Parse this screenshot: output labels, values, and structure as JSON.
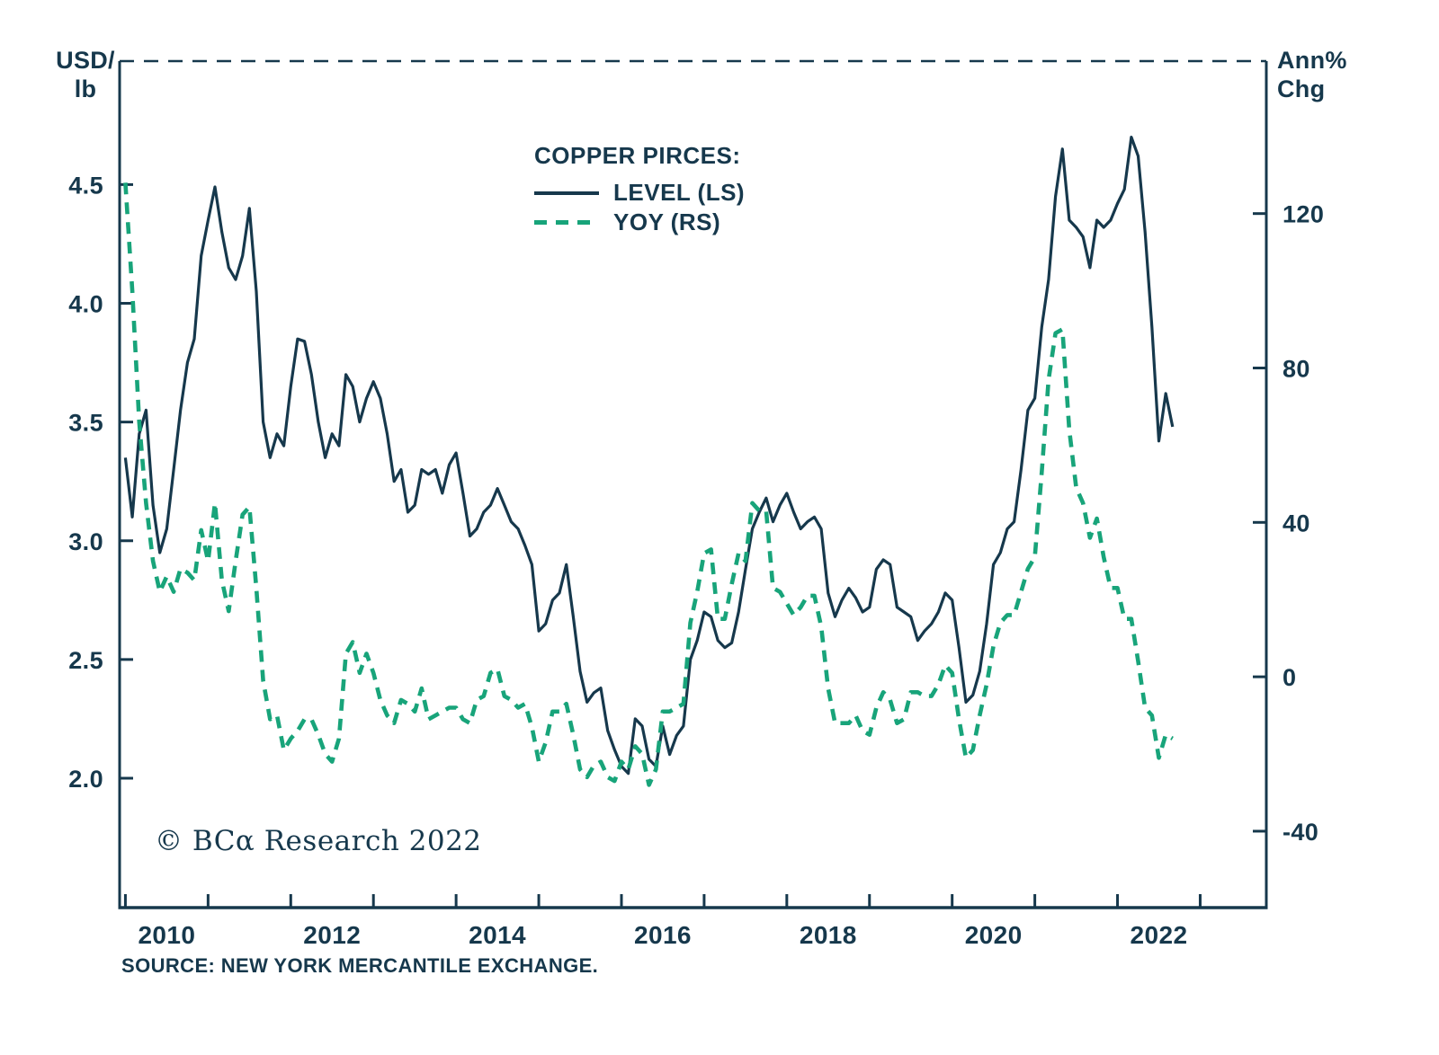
{
  "meta": {
    "copyright": "© BCα Research 2022",
    "source": "SOURCE: NEW YORK MERCANTILE EXCHANGE."
  },
  "colors": {
    "ink": "#16384c",
    "level": "#16384c",
    "yoy": "#18a47a",
    "frame": "#16384c",
    "background": "#ffffff"
  },
  "axes": {
    "left_unit_line1": "USD/",
    "left_unit_line2": "lb",
    "right_unit_line1": "Ann%",
    "right_unit_line2": "Chg"
  },
  "legend": {
    "title": "COPPER PIRCES:",
    "series1": "LEVEL (LS)",
    "series2": "YOY (RS)"
  },
  "chart_data": {
    "type": "line",
    "title": "COPPER PIRCES:",
    "left_axis": {
      "label": "USD/lb",
      "range": [
        1.455,
        5.02
      ],
      "ticks": [
        4.5,
        4.0,
        3.5,
        3.0,
        2.5,
        2.0
      ],
      "tick_labels": [
        "4.5",
        "4.0",
        "3.5",
        "3.0",
        "2.5",
        "2.0"
      ]
    },
    "right_axis": {
      "label": "Ann% Chg",
      "range": [
        -59.8,
        159.5
      ],
      "ticks": [
        120,
        80,
        40,
        0,
        -40
      ],
      "tick_labels": [
        "120",
        "80",
        "40",
        "0",
        "-40"
      ]
    },
    "x_axis": {
      "range": [
        2009.93,
        2023.8
      ],
      "tick_years": [
        2010,
        2011,
        2012,
        2013,
        2014,
        2015,
        2016,
        2017,
        2018,
        2019,
        2020,
        2021,
        2022,
        2023
      ],
      "label_years": [
        2010,
        2012,
        2014,
        2016,
        2018,
        2020,
        2022
      ]
    },
    "series": [
      {
        "name": "LEVEL (LS)",
        "axis": "left",
        "style": "solid",
        "color": "#16384c",
        "x_start": 2010.0,
        "x_step": 0.0833333,
        "values": [
          3.35,
          3.1,
          3.45,
          3.55,
          3.15,
          2.95,
          3.05,
          3.3,
          3.55,
          3.75,
          3.85,
          4.2,
          4.35,
          4.49,
          4.3,
          4.15,
          4.1,
          4.2,
          4.4,
          4.05,
          3.5,
          3.35,
          3.45,
          3.4,
          3.65,
          3.85,
          3.84,
          3.7,
          3.5,
          3.35,
          3.45,
          3.4,
          3.7,
          3.65,
          3.5,
          3.6,
          3.67,
          3.6,
          3.45,
          3.25,
          3.3,
          3.12,
          3.15,
          3.3,
          3.28,
          3.3,
          3.2,
          3.32,
          3.37,
          3.2,
          3.02,
          3.05,
          3.12,
          3.15,
          3.22,
          3.15,
          3.08,
          3.05,
          2.98,
          2.9,
          2.62,
          2.65,
          2.75,
          2.78,
          2.9,
          2.68,
          2.45,
          2.32,
          2.36,
          2.38,
          2.2,
          2.12,
          2.05,
          2.02,
          2.25,
          2.22,
          2.08,
          2.05,
          2.22,
          2.1,
          2.18,
          2.22,
          2.5,
          2.58,
          2.7,
          2.68,
          2.58,
          2.55,
          2.57,
          2.7,
          2.88,
          3.05,
          3.12,
          3.18,
          3.08,
          3.15,
          3.2,
          3.12,
          3.05,
          3.08,
          3.1,
          3.05,
          2.78,
          2.68,
          2.75,
          2.8,
          2.76,
          2.7,
          2.72,
          2.88,
          2.92,
          2.9,
          2.72,
          2.7,
          2.68,
          2.58,
          2.62,
          2.65,
          2.7,
          2.78,
          2.75,
          2.55,
          2.32,
          2.35,
          2.45,
          2.65,
          2.9,
          2.95,
          3.05,
          3.08,
          3.3,
          3.55,
          3.6,
          3.9,
          4.1,
          4.45,
          4.65,
          4.35,
          4.32,
          4.28,
          4.15,
          4.35,
          4.32,
          4.35,
          4.42,
          4.48,
          4.7,
          4.62,
          4.3,
          3.9,
          3.42,
          3.62,
          3.48
        ]
      },
      {
        "name": "YOY (RS)",
        "axis": "right",
        "style": "dashed",
        "color": "#18a47a",
        "x_start": 2010.0,
        "x_step": 0.0833333,
        "values": [
          128,
          100,
          66,
          45,
          30,
          22,
          26,
          22,
          28,
          27,
          25,
          38,
          30,
          45,
          25,
          17,
          30,
          42,
          44,
          23,
          -1,
          -11,
          -10,
          -19,
          -16,
          -14,
          -11,
          -11,
          -15,
          -20,
          -22,
          -16,
          6,
          9,
          1,
          6,
          1,
          -6,
          -10,
          -12,
          -6,
          -7,
          -9,
          -3,
          -11,
          -10,
          -9,
          -8,
          -8,
          -11,
          -12,
          -6,
          -5,
          1,
          2,
          -5,
          -6,
          -8,
          -7,
          -13,
          -22,
          -17,
          -9,
          -9,
          -7,
          -15,
          -24,
          -26,
          -23,
          -22,
          -26,
          -27,
          -22,
          -24,
          -18,
          -20,
          -28,
          -24,
          -9,
          -9,
          -8,
          -7,
          14,
          22,
          32,
          33,
          15,
          15,
          24,
          32,
          30,
          45,
          43,
          43,
          23,
          22,
          19,
          16,
          18,
          21,
          21,
          13,
          -3,
          -12,
          -12,
          -12,
          -10,
          -14,
          -15,
          -8,
          -4,
          -6,
          -12,
          -11,
          -4,
          -4,
          -5,
          -5,
          -2,
          3,
          1,
          -11,
          -21,
          -19,
          -10,
          -2,
          8,
          14,
          16,
          16,
          22,
          28,
          31,
          53,
          77,
          89,
          90,
          64,
          49,
          45,
          36,
          41,
          31,
          23,
          23,
          15,
          15,
          4,
          -8,
          -10,
          -21,
          -15,
          -16
        ]
      }
    ]
  }
}
